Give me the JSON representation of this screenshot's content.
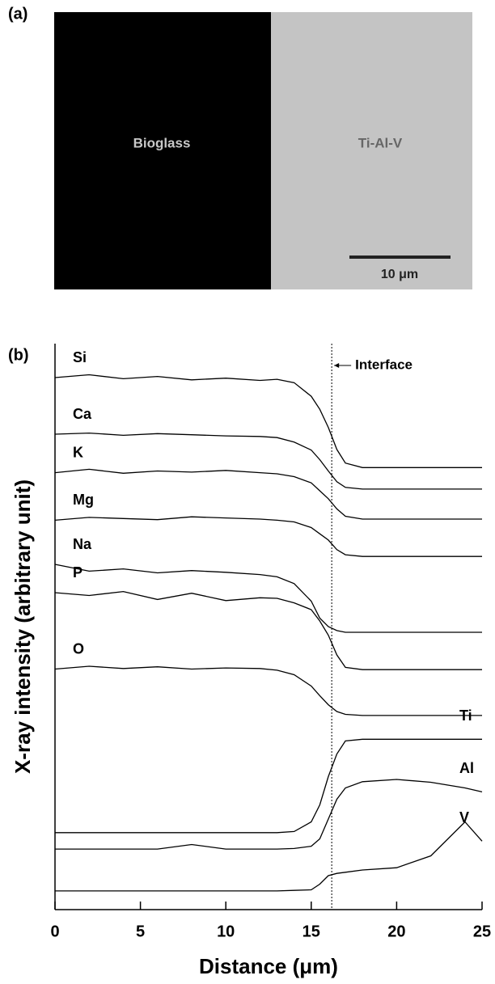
{
  "panel_a": {
    "label": "(a)",
    "left_label": "Bioglass",
    "right_label": "Ti-Al-V",
    "scale_bar": "10 μm"
  },
  "chart_data": {
    "type": "line",
    "label": "(b)",
    "x_label": "Distance  (μm)",
    "y_label": "X-ray intensity (arbitrary unit)",
    "xlim": [
      0,
      25
    ],
    "xticks": [
      0,
      5,
      10,
      15,
      20,
      25
    ],
    "ylim": [
      0,
      100
    ],
    "annotations": [
      {
        "text": "Interface",
        "x": 16.2
      }
    ],
    "x": [
      0,
      2,
      4,
      6,
      8,
      10,
      12,
      13,
      14,
      15,
      15.5,
      16,
      16.5,
      17,
      18,
      20,
      22,
      24,
      25
    ],
    "series": [
      {
        "name": "Si",
        "color": "#000000",
        "values": [
          94,
          94.5,
          93.8,
          94.2,
          93.6,
          93.9,
          93.5,
          93.7,
          93.1,
          90.7,
          88.4,
          85.2,
          81.3,
          78.9,
          78.1,
          78.1,
          78.1,
          78.1,
          78.1
        ]
      },
      {
        "name": "Ca",
        "color": "#000000",
        "values": [
          84,
          84.2,
          83.8,
          84.1,
          83.9,
          83.7,
          83.6,
          83.4,
          82.6,
          81.2,
          79.5,
          77.5,
          75.6,
          74.6,
          74.3,
          74.3,
          74.3,
          74.3,
          74.3
        ]
      },
      {
        "name": "K",
        "color": "#000000",
        "values": [
          77.2,
          77.8,
          77.1,
          77.5,
          77.3,
          77.6,
          77.2,
          77,
          76.5,
          75.4,
          74,
          72.6,
          70.8,
          69.5,
          69,
          69,
          69,
          69,
          69
        ]
      },
      {
        "name": "Mg",
        "color": "#000000",
        "values": [
          68.8,
          69.3,
          69.1,
          68.9,
          69.4,
          69.2,
          69,
          68.8,
          68.5,
          67.5,
          66.4,
          65.3,
          63.6,
          62.7,
          62.4,
          62.4,
          62.4,
          62.4,
          62.4
        ]
      },
      {
        "name": "Na",
        "color": "#000000",
        "values": [
          61,
          59.8,
          60.2,
          59.5,
          59.9,
          59.6,
          59.2,
          58.8,
          57.6,
          54.5,
          51.5,
          50,
          49.3,
          49,
          49,
          49,
          49,
          49,
          49
        ]
      },
      {
        "name": "P",
        "color": "#000000",
        "values": [
          56,
          55.5,
          56.2,
          54.8,
          55.9,
          54.6,
          55.1,
          55,
          54.2,
          53,
          51,
          48.5,
          45,
          42.8,
          42.4,
          42.4,
          42.4,
          42.4,
          42.4
        ]
      },
      {
        "name": "O",
        "color": "#000000",
        "values": [
          42.5,
          43,
          42.6,
          42.9,
          42.5,
          42.7,
          42.6,
          42.3,
          41.5,
          39.5,
          37.8,
          36.2,
          35,
          34.5,
          34.3,
          34.3,
          34.3,
          34.3,
          34.3
        ]
      },
      {
        "name": "Ti",
        "color": "#000000",
        "values": [
          13.6,
          13.6,
          13.6,
          13.6,
          13.6,
          13.6,
          13.6,
          13.6,
          13.8,
          15.5,
          18.5,
          23.5,
          27.5,
          29.8,
          30.1,
          30.1,
          30.1,
          30.1,
          30.1
        ]
      },
      {
        "name": "Al",
        "color": "#000000",
        "values": [
          10.7,
          10.7,
          10.7,
          10.7,
          11.5,
          10.7,
          10.7,
          10.7,
          10.8,
          11.2,
          12.5,
          16,
          19.5,
          21.5,
          22.6,
          23,
          22.5,
          21.5,
          20.8
        ]
      },
      {
        "name": "V",
        "color": "#000000",
        "values": [
          3.3,
          3.3,
          3.3,
          3.3,
          3.3,
          3.3,
          3.3,
          3.3,
          3.4,
          3.5,
          4.5,
          6,
          6.4,
          6.6,
          7,
          7.4,
          9.5,
          15.5,
          12.1
        ]
      }
    ]
  }
}
